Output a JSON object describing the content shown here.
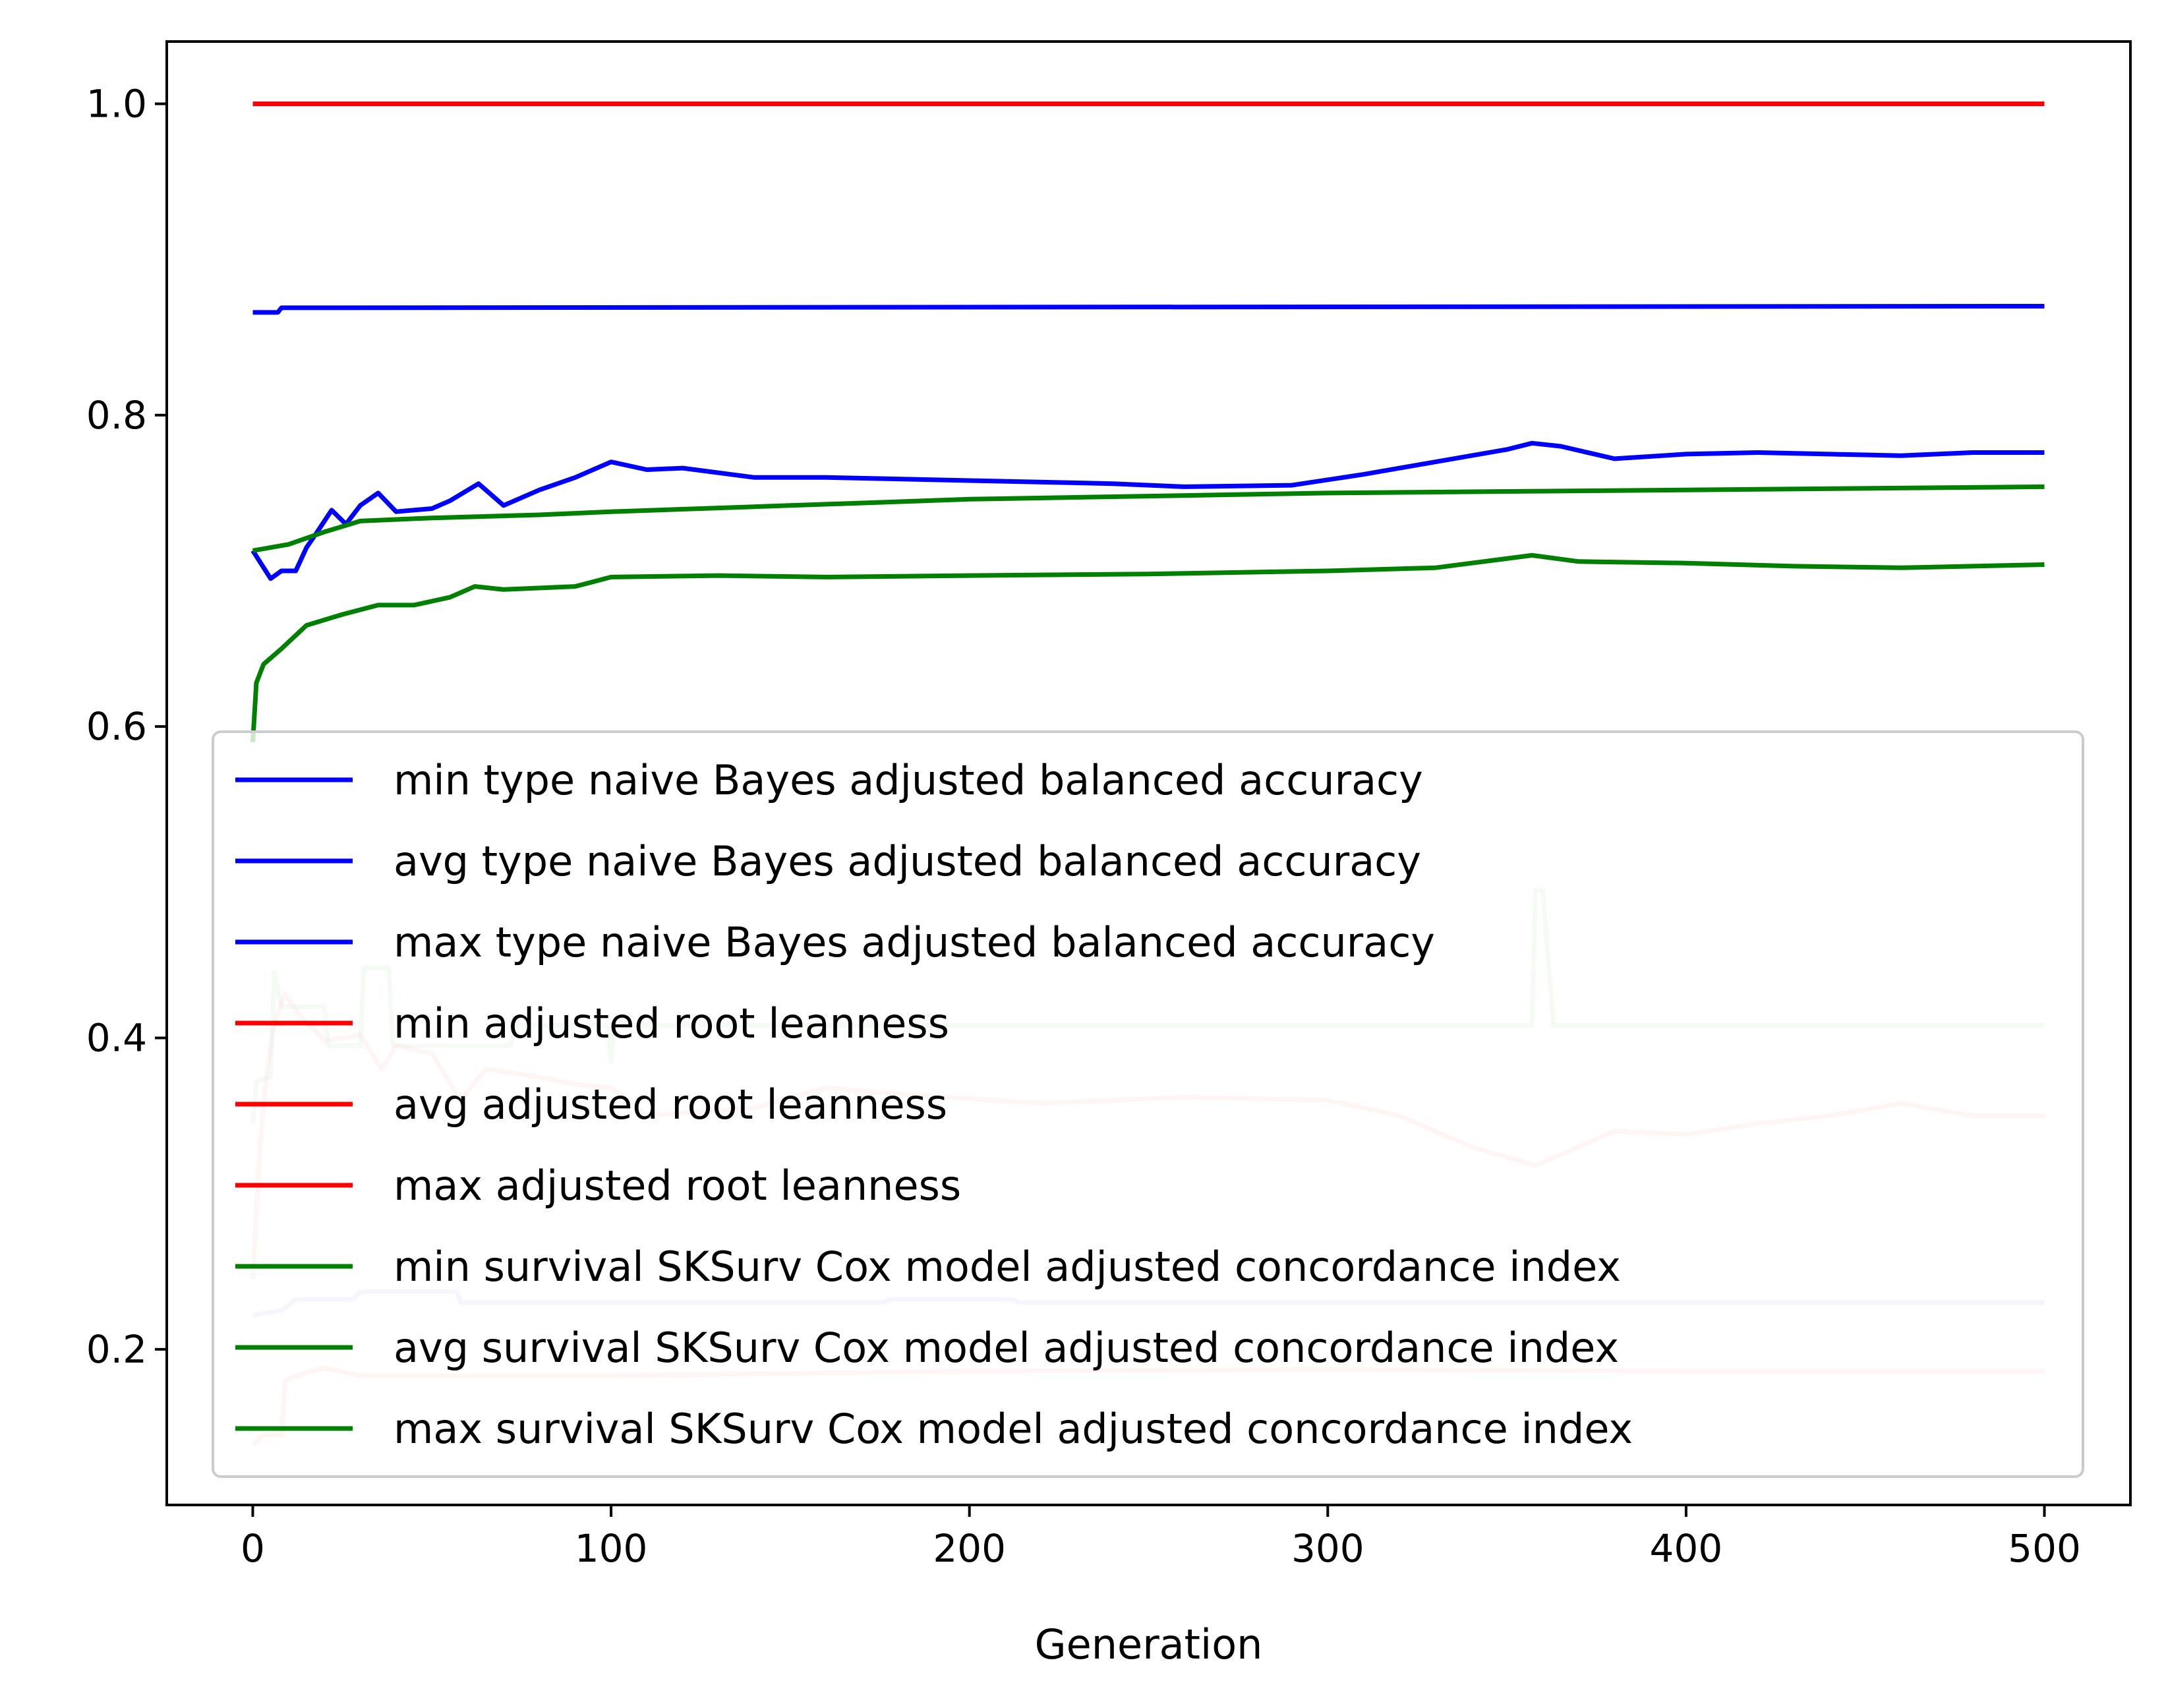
{
  "chart_data": {
    "type": "line",
    "title": "",
    "xlabel": "Generation",
    "ylabel": "",
    "xlim": [
      -24,
      524
    ],
    "ylim": [
      0.1,
      1.04
    ],
    "xticks": [
      0,
      100,
      200,
      300,
      400,
      500
    ],
    "yticks": [
      0.2,
      0.4,
      0.6,
      0.8,
      1.0
    ],
    "xtick_labels": [
      "0",
      "100",
      "200",
      "300",
      "400",
      "500"
    ],
    "ytick_labels": [
      "0.2",
      "0.4",
      "0.6",
      "0.8",
      "1.0"
    ],
    "grid": false,
    "legend_position": "lower-center",
    "series": [
      {
        "name": "min type naive Bayes adjusted balanced accuracy",
        "color": "#0000ff",
        "opacity": 0.2,
        "points": [
          [
            0,
            0.222
          ],
          [
            8,
            0.225
          ],
          [
            12,
            0.232
          ],
          [
            28,
            0.232
          ],
          [
            30,
            0.237
          ],
          [
            57,
            0.237
          ],
          [
            58,
            0.23
          ],
          [
            176,
            0.23
          ],
          [
            178,
            0.232
          ],
          [
            212,
            0.232
          ],
          [
            214,
            0.23
          ],
          [
            500,
            0.23
          ]
        ]
      },
      {
        "name": "avg type naive Bayes adjusted balanced accuracy",
        "color": "#0000ff",
        "opacity": 1,
        "points": [
          [
            0,
            0.713
          ],
          [
            5,
            0.695
          ],
          [
            8,
            0.7
          ],
          [
            12,
            0.7
          ],
          [
            15,
            0.715
          ],
          [
            18,
            0.725
          ],
          [
            22,
            0.739
          ],
          [
            26,
            0.73
          ],
          [
            30,
            0.742
          ],
          [
            35,
            0.75
          ],
          [
            40,
            0.738
          ],
          [
            50,
            0.74
          ],
          [
            55,
            0.745
          ],
          [
            63,
            0.756
          ],
          [
            70,
            0.742
          ],
          [
            80,
            0.752
          ],
          [
            90,
            0.76
          ],
          [
            100,
            0.77
          ],
          [
            110,
            0.765
          ],
          [
            120,
            0.766
          ],
          [
            140,
            0.76
          ],
          [
            160,
            0.76
          ],
          [
            200,
            0.758
          ],
          [
            240,
            0.756
          ],
          [
            260,
            0.754
          ],
          [
            290,
            0.755
          ],
          [
            310,
            0.762
          ],
          [
            330,
            0.77
          ],
          [
            350,
            0.778
          ],
          [
            357,
            0.782
          ],
          [
            365,
            0.78
          ],
          [
            380,
            0.772
          ],
          [
            400,
            0.775
          ],
          [
            420,
            0.776
          ],
          [
            440,
            0.775
          ],
          [
            460,
            0.774
          ],
          [
            480,
            0.776
          ],
          [
            500,
            0.776
          ]
        ]
      },
      {
        "name": "max type naive Bayes adjusted balanced accuracy",
        "color": "#0000ff",
        "opacity": 1,
        "points": [
          [
            0,
            0.866
          ],
          [
            7,
            0.866
          ],
          [
            8,
            0.869
          ],
          [
            500,
            0.87
          ]
        ]
      },
      {
        "name": "min adjusted root leanness",
        "color": "#ff0000",
        "opacity": 0.2,
        "points": [
          [
            0,
            0.138
          ],
          [
            3,
            0.145
          ],
          [
            8,
            0.145
          ],
          [
            9,
            0.18
          ],
          [
            15,
            0.185
          ],
          [
            20,
            0.188
          ],
          [
            30,
            0.183
          ],
          [
            100,
            0.183
          ],
          [
            200,
            0.186
          ],
          [
            300,
            0.187
          ],
          [
            400,
            0.186
          ],
          [
            500,
            0.186
          ]
        ]
      },
      {
        "name": "avg adjusted root leanness",
        "color": "#ff0000",
        "opacity": 0.2,
        "points": [
          [
            0,
            0.245
          ],
          [
            2,
            0.33
          ],
          [
            4,
            0.38
          ],
          [
            6,
            0.41
          ],
          [
            9,
            0.428
          ],
          [
            13,
            0.415
          ],
          [
            20,
            0.398
          ],
          [
            30,
            0.402
          ],
          [
            36,
            0.38
          ],
          [
            40,
            0.395
          ],
          [
            50,
            0.39
          ],
          [
            58,
            0.36
          ],
          [
            65,
            0.38
          ],
          [
            80,
            0.375
          ],
          [
            90,
            0.37
          ],
          [
            100,
            0.368
          ],
          [
            110,
            0.35
          ],
          [
            140,
            0.355
          ],
          [
            160,
            0.368
          ],
          [
            180,
            0.364
          ],
          [
            220,
            0.358
          ],
          [
            260,
            0.362
          ],
          [
            300,
            0.36
          ],
          [
            320,
            0.35
          ],
          [
            340,
            0.33
          ],
          [
            358,
            0.318
          ],
          [
            370,
            0.33
          ],
          [
            380,
            0.34
          ],
          [
            400,
            0.338
          ],
          [
            420,
            0.345
          ],
          [
            440,
            0.35
          ],
          [
            460,
            0.358
          ],
          [
            480,
            0.35
          ],
          [
            500,
            0.35
          ]
        ]
      },
      {
        "name": "max adjusted root leanness",
        "color": "#ff0000",
        "opacity": 1,
        "points": [
          [
            0,
            1.0
          ],
          [
            500,
            1.0
          ]
        ]
      },
      {
        "name": "min survival SKSurv Cox model adjusted concordance index",
        "color": "#008000",
        "opacity": 0.2,
        "points": [
          [
            0,
            0.345
          ],
          [
            1,
            0.372
          ],
          [
            5,
            0.375
          ],
          [
            6,
            0.442
          ],
          [
            8,
            0.42
          ],
          [
            20,
            0.42
          ],
          [
            21,
            0.395
          ],
          [
            30,
            0.395
          ],
          [
            31,
            0.445
          ],
          [
            38,
            0.445
          ],
          [
            39,
            0.395
          ],
          [
            72,
            0.395
          ],
          [
            73,
            0.408
          ],
          [
            99,
            0.408
          ],
          [
            100,
            0.385
          ],
          [
            101,
            0.408
          ],
          [
            357,
            0.408
          ],
          [
            358,
            0.495
          ],
          [
            360,
            0.495
          ],
          [
            363,
            0.408
          ],
          [
            500,
            0.408
          ]
        ]
      },
      {
        "name": "avg survival SKSurv Cox model adjusted concordance index",
        "color": "#008000",
        "opacity": 1,
        "points": [
          [
            0,
            0.59
          ],
          [
            1,
            0.628
          ],
          [
            3,
            0.64
          ],
          [
            8,
            0.65
          ],
          [
            15,
            0.665
          ],
          [
            25,
            0.672
          ],
          [
            35,
            0.678
          ],
          [
            45,
            0.678
          ],
          [
            55,
            0.683
          ],
          [
            62,
            0.69
          ],
          [
            70,
            0.688
          ],
          [
            90,
            0.69
          ],
          [
            100,
            0.696
          ],
          [
            130,
            0.697
          ],
          [
            160,
            0.696
          ],
          [
            200,
            0.697
          ],
          [
            250,
            0.698
          ],
          [
            300,
            0.7
          ],
          [
            330,
            0.702
          ],
          [
            357,
            0.71
          ],
          [
            370,
            0.706
          ],
          [
            400,
            0.705
          ],
          [
            430,
            0.703
          ],
          [
            460,
            0.702
          ],
          [
            500,
            0.704
          ]
        ]
      },
      {
        "name": "max survival SKSurv Cox model adjusted concordance index",
        "color": "#008000",
        "opacity": 1,
        "points": [
          [
            0,
            0.713
          ],
          [
            10,
            0.717
          ],
          [
            20,
            0.725
          ],
          [
            30,
            0.732
          ],
          [
            50,
            0.734
          ],
          [
            80,
            0.736
          ],
          [
            100,
            0.738
          ],
          [
            150,
            0.742
          ],
          [
            200,
            0.746
          ],
          [
            250,
            0.748
          ],
          [
            300,
            0.75
          ],
          [
            400,
            0.752
          ],
          [
            500,
            0.754
          ]
        ]
      }
    ]
  }
}
